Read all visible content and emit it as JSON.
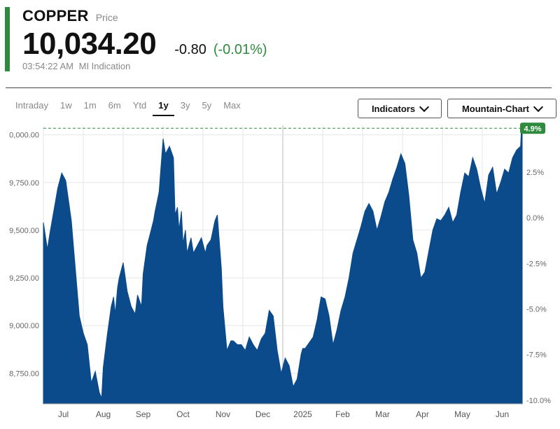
{
  "header": {
    "name": "COPPER",
    "subtitle": "Price",
    "price": "10,034.20",
    "change": "-0.80",
    "change_pct": "(-0.01%)",
    "time": "03:54:22 AM",
    "source": "MI Indication",
    "accent_color": "#2e8b3e"
  },
  "tabs": [
    {
      "label": "Intraday"
    },
    {
      "label": "1w"
    },
    {
      "label": "1m"
    },
    {
      "label": "6m"
    },
    {
      "label": "Ytd"
    },
    {
      "label": "1y",
      "active": true
    },
    {
      "label": "3y"
    },
    {
      "label": "5y"
    },
    {
      "label": "Max"
    }
  ],
  "controls": {
    "indicators_label": "Indicators",
    "chart_type_label": "Mountain-Chart",
    "chevron_icon": "chevron-down-icon"
  },
  "chart_data": {
    "type": "area",
    "fill_color": "#0b4a8b",
    "grid": true,
    "y_ticks_left": [
      "0,000.00",
      "9,750.00",
      "9,500.00",
      "9,250.00",
      "9,000.00",
      "8,750.00"
    ],
    "y_tick_values_left": [
      10000,
      9750,
      9500,
      9250,
      9000,
      8750
    ],
    "y_ticks_right": [
      "2.5%",
      "0.0%",
      "-2.5%",
      "-5.0%",
      "-7.5%",
      "-10.0%"
    ],
    "y_tick_values_right": [
      2.5,
      0.0,
      -2.5,
      -5.0,
      -7.5,
      -10.0
    ],
    "x_labels": [
      "Jul",
      "Aug",
      "Sep",
      "Oct",
      "Nov",
      "Dec",
      "2025",
      "Feb",
      "Mar",
      "Apr",
      "May",
      "Jun"
    ],
    "x_label_pos": [
      0.5,
      1.5,
      2.5,
      3.5,
      4.5,
      5.5,
      6.5,
      7.5,
      8.5,
      9.5,
      10.5,
      11.5
    ],
    "x_range": [
      0,
      12
    ],
    "ylim": [
      8590,
      10050
    ],
    "reference_line": {
      "value": 10034.2,
      "label": "4.9%",
      "color": "#2e8b3e"
    },
    "series": [
      {
        "x": [
          0,
          0.1,
          0.16,
          0.26,
          0.36,
          0.46,
          0.56,
          0.6,
          0.7,
          0.8,
          0.9,
          1.0,
          1.1,
          1.2,
          1.3,
          1.4,
          1.46,
          1.5,
          1.6,
          1.7,
          1.76,
          1.8,
          1.86,
          1.9,
          2.0,
          2.1,
          2.2,
          2.3,
          2.36,
          2.46,
          2.5,
          2.6,
          2.7,
          2.76,
          2.8,
          2.9,
          3.0,
          3.06,
          3.16,
          3.26,
          3.3,
          3.36,
          3.4,
          3.46,
          3.5,
          3.56,
          3.6,
          3.7,
          3.76,
          3.86,
          3.96,
          4.06,
          4.1,
          4.2,
          4.3,
          4.36,
          4.46,
          4.5,
          4.6,
          4.7,
          4.76,
          4.86,
          4.96,
          5.06,
          5.16,
          5.26,
          5.36,
          5.46,
          5.56,
          5.66,
          5.76,
          5.86,
          5.96,
          6.06,
          6.16,
          6.26,
          6.36,
          6.46,
          6.5,
          6.56,
          6.66,
          6.76,
          6.86,
          6.96,
          7.06,
          7.16,
          7.26,
          7.36,
          7.46,
          7.56,
          7.66,
          7.76,
          7.86,
          7.96,
          8.06,
          8.16,
          8.26,
          8.36,
          8.46,
          8.56,
          8.66,
          8.76,
          8.86,
          8.96,
          9.06,
          9.16,
          9.26,
          9.36,
          9.46,
          9.56,
          9.66,
          9.76,
          9.86,
          9.96,
          10.06,
          10.16,
          10.26,
          10.36,
          10.46,
          10.56,
          10.66,
          10.76,
          10.86,
          10.96,
          11.06,
          11.16,
          11.26,
          11.36,
          11.46,
          11.56,
          11.66,
          11.76,
          11.86,
          11.96,
          11.98,
          12.0
        ],
        "values": [
          9540,
          9400,
          9480,
          9600,
          9720,
          9800,
          9760,
          9700,
          9550,
          9300,
          9050,
          8960,
          8900,
          8700,
          8760,
          8650,
          8620,
          8780,
          8950,
          9100,
          9150,
          9060,
          9200,
          9250,
          9330,
          9180,
          9100,
          9060,
          9160,
          9100,
          9270,
          9420,
          9500,
          9550,
          9600,
          9700,
          9980,
          9900,
          9940,
          9880,
          9580,
          9620,
          9500,
          9600,
          9430,
          9500,
          9380,
          9460,
          9380,
          9420,
          9460,
          9380,
          9420,
          9450,
          9550,
          9580,
          9300,
          9100,
          8870,
          8920,
          8920,
          8900,
          8900,
          8870,
          8940,
          8900,
          8870,
          8930,
          8960,
          9080,
          9050,
          8870,
          8750,
          8830,
          8790,
          8680,
          8720,
          8850,
          8880,
          8880,
          8910,
          8940,
          9030,
          9150,
          9140,
          9050,
          8900,
          8980,
          9080,
          9150,
          9250,
          9380,
          9450,
          9520,
          9600,
          9640,
          9600,
          9500,
          9570,
          9650,
          9700,
          9770,
          9830,
          9900,
          9850,
          9680,
          9450,
          9380,
          9250,
          9280,
          9390,
          9500,
          9560,
          9550,
          9580,
          9620,
          9540,
          9580,
          9700,
          9800,
          9780,
          9880,
          9820,
          9720,
          9640,
          9790,
          9830,
          9690,
          9750,
          9820,
          9800,
          9880,
          9920,
          9940,
          10034.2,
          10020
        ]
      }
    ]
  }
}
